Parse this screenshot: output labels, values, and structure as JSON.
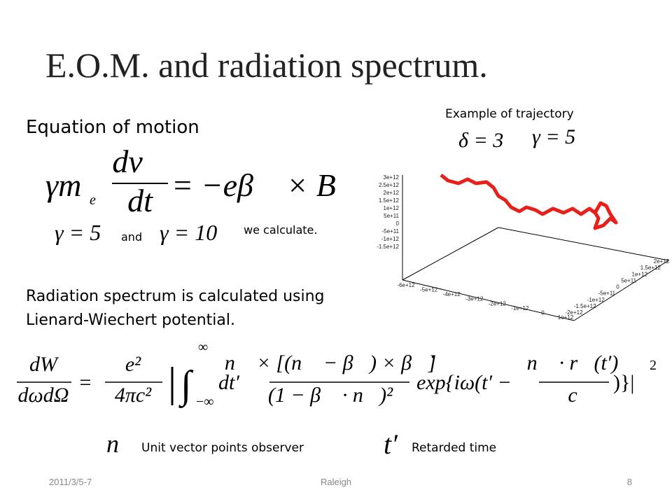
{
  "title": "E.O.M. and radiation spectrum.",
  "equation_of_motion": {
    "heading": "Equation of motion",
    "lhs_factor": "γm",
    "lhs_subscript": "e",
    "numerator": "dv⃗",
    "denominator": "dt",
    "rhs": "= −eβ⃗ × B⃗"
  },
  "gamma_cases": {
    "first": "γ = 5",
    "and": "and",
    "second": "γ = 10",
    "suffix": "we calculate."
  },
  "trajectory": {
    "caption": "Example of trajectory",
    "delta": "δ = 3",
    "gamma": "γ = 5",
    "z_ticks": [
      "3e+12",
      "2.5e+12",
      "2e+12",
      "1.5e+12",
      "1e+12",
      "5e+11",
      "0",
      "-5e+11",
      "-1e+12",
      "-1.5e+12"
    ],
    "x_ticks": [
      "-6e+12",
      "-5e+12",
      "-4e+12",
      "-3e+12",
      "-2e+12",
      "-1e+12",
      "0",
      "1e+12"
    ],
    "y_ticks": [
      "2e+12",
      "1.5e+12",
      "1e+12",
      "5e+11",
      "0",
      "-5e+11",
      "-1e+12",
      "-1.5e+12",
      "-2e+12"
    ]
  },
  "radiation": {
    "line1": "Radiation spectrum is calculated using",
    "line2": "Lienard-Wiechert potential.",
    "formula": {
      "lhs_num": "dW",
      "lhs_den": "dωdΩ",
      "equals": "=",
      "coef_num": "e²",
      "coef_den": "4πc²",
      "bar": "|",
      "integral": "∫",
      "upper": "∞",
      "lower": "−∞",
      "dt": "dt′",
      "frac_num": "n⃗ × [(n⃗ − β⃗) × β⃗̇]",
      "frac_den": "(1 − β⃗ · n⃗)²",
      "exp": "exp{iω(t′ −",
      "phase_num": "n⃗ · r⃗(t′)",
      "phase_den": "c",
      "close": ")}|",
      "power": "2"
    }
  },
  "legend": {
    "n_symbol": "n⃗",
    "n_text": "Unit vector points  observer",
    "t_symbol": "t′",
    "t_text": "Retarded time"
  },
  "footer": {
    "date": "2011/3/5-7",
    "center": "Raleigh",
    "page": "8"
  }
}
